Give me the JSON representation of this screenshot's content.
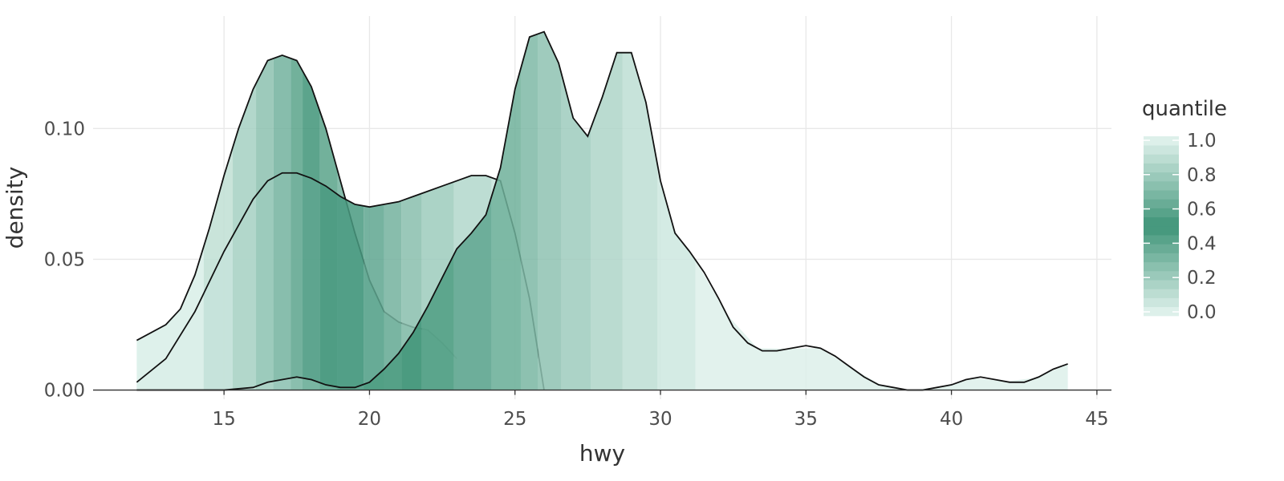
{
  "chart_data": {
    "type": "area",
    "xlabel": "hwy",
    "ylabel": "density",
    "xlim": [
      10.5,
      45.5
    ],
    "ylim": [
      -0.0035,
      0.143
    ],
    "x_ticks": [
      15,
      20,
      25,
      30,
      35,
      40,
      45
    ],
    "x_tick_labels": [
      "15",
      "20",
      "25",
      "30",
      "35",
      "40",
      "45"
    ],
    "y_ticks": [
      0.0,
      0.05,
      0.1
    ],
    "y_tick_labels": [
      "0.00",
      "0.05",
      "0.10"
    ],
    "grid": true,
    "legend": {
      "title": "quantile",
      "position": "right",
      "ticks": [
        0.0,
        0.2,
        0.4,
        0.6,
        0.8,
        1.0
      ],
      "tick_labels": [
        "0.0",
        "0.2",
        "0.4",
        "0.6",
        "0.8",
        "1.0"
      ]
    },
    "colors": {
      "light": "#e5f5f0",
      "dark": "#3f9478",
      "outline": "#111111",
      "grid": "#e8e8e8"
    },
    "series": [
      {
        "x": [
          12,
          13,
          13.5,
          14,
          14.5,
          15,
          15.5,
          16,
          16.5,
          17,
          17.5,
          18,
          18.5,
          19,
          19.5,
          20,
          20.5,
          21,
          21.5,
          22,
          22.5,
          23
        ],
        "y": [
          0.019,
          0.025,
          0.031,
          0.044,
          0.062,
          0.082,
          0.1,
          0.115,
          0.126,
          0.128,
          0.126,
          0.116,
          0.1,
          0.08,
          0.06,
          0.042,
          0.03,
          0.026,
          0.024,
          0.023,
          0.018,
          0.012
        ],
        "quantile_breaks": [
          14.3,
          15.3,
          16.1,
          16.7,
          17.3,
          17.7,
          18.3,
          18.9,
          19.8,
          21.1,
          21.8,
          22.9,
          24.2,
          25.2,
          26.6,
          27.6,
          28.7,
          29.9,
          31.2
        ]
      },
      {
        "x": [
          12,
          13,
          14,
          15,
          16,
          16.5,
          17,
          17.5,
          18,
          18.5,
          19,
          19.5,
          20,
          20.5,
          21,
          21.5,
          22,
          22.5,
          23,
          23.5,
          24,
          24.5,
          25,
          25.5,
          26
        ],
        "y": [
          0.003,
          0.012,
          0.03,
          0.053,
          0.073,
          0.08,
          0.083,
          0.083,
          0.081,
          0.078,
          0.074,
          0.071,
          0.07,
          0.071,
          0.072,
          0.074,
          0.076,
          0.078,
          0.08,
          0.082,
          0.082,
          0.08,
          0.06,
          0.035,
          0.0
        ],
        "quantile_breaks": [
          14.3,
          15.3,
          16.1,
          16.7,
          17.3,
          17.7,
          18.3,
          18.9,
          19.8,
          20.5,
          21.1,
          21.8,
          22.9,
          24.2,
          25.2
        ]
      },
      {
        "x": [
          12,
          14,
          15,
          16,
          16.5,
          17,
          17.5,
          18,
          18.5,
          19,
          19.5,
          20,
          20.5,
          21,
          21.5,
          22,
          22.5,
          23,
          23.5,
          24,
          24.5,
          25,
          25.5,
          26,
          26.5,
          27,
          27.5,
          28,
          28.5,
          29,
          29.5,
          30,
          30.5,
          31,
          31.5,
          32,
          32.5,
          33,
          33.5,
          34,
          34.5,
          35,
          35.5,
          36,
          36.5,
          37,
          37.5,
          38,
          38.5,
          39,
          39.5,
          40,
          40.5,
          41,
          41.5,
          42,
          42.5,
          43,
          43.5,
          44
        ],
        "y": [
          0.0,
          0.0,
          0.0,
          0.001,
          0.003,
          0.004,
          0.005,
          0.004,
          0.002,
          0.001,
          0.001,
          0.003,
          0.008,
          0.014,
          0.022,
          0.032,
          0.043,
          0.054,
          0.06,
          0.067,
          0.085,
          0.115,
          0.135,
          0.137,
          0.125,
          0.104,
          0.097,
          0.112,
          0.129,
          0.129,
          0.11,
          0.08,
          0.06,
          0.053,
          0.045,
          0.035,
          0.024,
          0.018,
          0.015,
          0.015,
          0.016,
          0.017,
          0.016,
          0.013,
          0.009,
          0.005,
          0.002,
          0.001,
          0.0,
          0.0,
          0.001,
          0.002,
          0.004,
          0.005,
          0.004,
          0.003,
          0.003,
          0.005,
          0.008,
          0.01
        ],
        "quantile_breaks": [
          14.3,
          15.3,
          16.1,
          16.7,
          17.3,
          17.7,
          18.3,
          18.9,
          19.8,
          21.1,
          21.8,
          22.9,
          24.2,
          25.2,
          25.8,
          26.6,
          27.6,
          28.7,
          29.9,
          31.2
        ]
      }
    ]
  }
}
